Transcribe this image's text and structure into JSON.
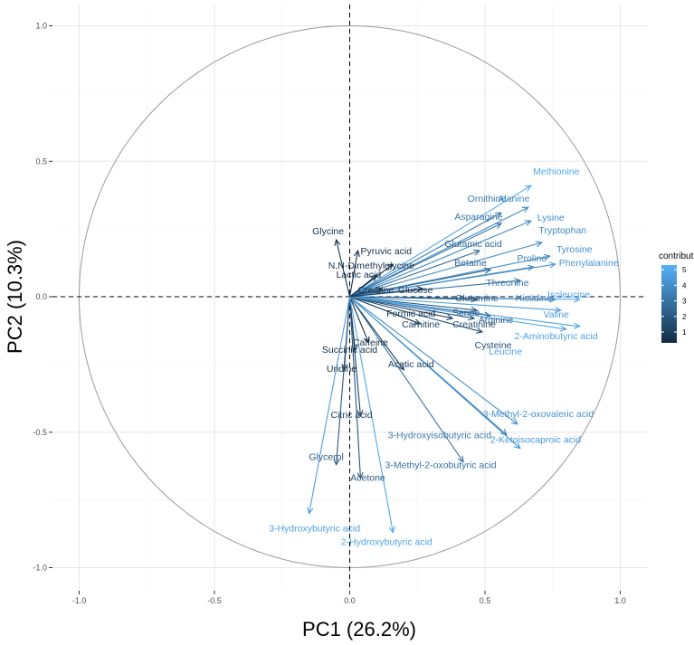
{
  "chart_data": {
    "type": "pca-variable-correlation-circle",
    "xlabel": "PC1 (26.2%)",
    "ylabel": "PC2 (10.3%)",
    "xlim": [
      -1.1,
      1.1
    ],
    "ylim": [
      -1.08,
      1.08
    ],
    "x_ticks": [
      -1.0,
      -0.5,
      0.0,
      0.5,
      1.0
    ],
    "x_tick_labels": [
      "-1.0",
      "-0.5",
      "0.0",
      "0.5",
      "1.0"
    ],
    "y_ticks": [
      -1.0,
      -0.5,
      0.0,
      0.5,
      1.0
    ],
    "y_tick_labels": [
      "-1.0",
      "-0.5",
      "0.0",
      "0.5",
      "1.0"
    ],
    "grid": true,
    "unit_circle": true,
    "legend": {
      "title": "contribution",
      "position": "right",
      "ticks": [
        1,
        2,
        3,
        4,
        5
      ],
      "tick_labels": [
        "1",
        "2",
        "3",
        "4",
        "5"
      ],
      "min": 0.3,
      "max": 5.3,
      "color_low": "#132b43",
      "color_high": "#56b1f7"
    },
    "variables": [
      {
        "name": "Methionine",
        "x": 0.67,
        "y": 0.41,
        "contrib": 5.0
      },
      {
        "name": "Alanine",
        "x": 0.66,
        "y": 0.33,
        "contrib": 3.8
      },
      {
        "name": "Ornithine",
        "x": 0.56,
        "y": 0.31,
        "contrib": 3.2
      },
      {
        "name": "Lysine",
        "x": 0.67,
        "y": 0.28,
        "contrib": 3.9
      },
      {
        "name": "Asparagine",
        "x": 0.56,
        "y": 0.27,
        "contrib": 3.1
      },
      {
        "name": "Tryptophan",
        "x": 0.71,
        "y": 0.2,
        "contrib": 3.9
      },
      {
        "name": "Glutamic acid",
        "x": 0.48,
        "y": 0.17,
        "contrib": 2.6
      },
      {
        "name": "Tyrosine",
        "x": 0.74,
        "y": 0.15,
        "contrib": 4.0
      },
      {
        "name": "Proline",
        "x": 0.68,
        "y": 0.11,
        "contrib": 3.5
      },
      {
        "name": "Betaine",
        "x": 0.52,
        "y": 0.1,
        "contrib": 2.5
      },
      {
        "name": "Phenylalanine",
        "x": 0.76,
        "y": 0.12,
        "contrib": 4.3
      },
      {
        "name": "Threonine",
        "x": 0.63,
        "y": 0.06,
        "contrib": 3.0
      },
      {
        "name": "Isoleucine",
        "x": 0.85,
        "y": -0.01,
        "contrib": 5.0
      },
      {
        "name": "Histidine",
        "x": 0.76,
        "y": -0.01,
        "contrib": 3.6
      },
      {
        "name": "Glutamine",
        "x": 0.47,
        "y": -0.01,
        "contrib": 1.9
      },
      {
        "name": "Serine",
        "x": 0.47,
        "y": -0.05,
        "contrib": 2.0
      },
      {
        "name": "Arginine",
        "x": 0.52,
        "y": -0.07,
        "contrib": 2.2
      },
      {
        "name": "Valine",
        "x": 0.78,
        "y": -0.05,
        "contrib": 4.6
      },
      {
        "name": "2-Aminobutyric acid",
        "x": 0.85,
        "y": -0.11,
        "contrib": 4.7
      },
      {
        "name": "Creatinine",
        "x": 0.46,
        "y": -0.08,
        "contrib": 1.8
      },
      {
        "name": "Carnitine",
        "x": 0.38,
        "y": -0.08,
        "contrib": 1.2
      },
      {
        "name": "Cysteine",
        "x": 0.49,
        "y": -0.13,
        "contrib": 1.6
      },
      {
        "name": "Formic acid",
        "x": 0.26,
        "y": -0.1,
        "contrib": 0.7
      },
      {
        "name": "Leucine",
        "x": 0.8,
        "y": -0.12,
        "contrib": 4.9
      },
      {
        "name": "Glycine",
        "x": -0.05,
        "y": 0.21,
        "contrib": 0.6
      },
      {
        "name": "Pyruvic acid",
        "x": 0.03,
        "y": 0.17,
        "contrib": 0.5
      },
      {
        "name": "N,N-Dimethylglycine",
        "x": 0.16,
        "y": 0.12,
        "contrib": 0.5
      },
      {
        "name": "Lactic acid",
        "x": 0.1,
        "y": 0.08,
        "contrib": 0.5
      },
      {
        "name": "Creatine",
        "x": 0.12,
        "y": 0.03,
        "contrib": 0.4
      },
      {
        "name": "Glucose",
        "x": 0.27,
        "y": 0.03,
        "contrib": 0.8
      },
      {
        "name": "Caffeine",
        "x": 0.07,
        "y": -0.17,
        "contrib": 0.5
      },
      {
        "name": "Succinic acid",
        "x": 0.02,
        "y": -0.2,
        "contrib": 0.4
      },
      {
        "name": "Uridine",
        "x": -0.02,
        "y": -0.27,
        "contrib": 0.5
      },
      {
        "name": "Acetic acid",
        "x": 0.2,
        "y": -0.27,
        "contrib": 1.0
      },
      {
        "name": "Citric acid",
        "x": 0.04,
        "y": -0.44,
        "contrib": 1.2
      },
      {
        "name": "3-Methyl-2-oxovaleric acid",
        "x": 0.62,
        "y": -0.47,
        "contrib": 4.1
      },
      {
        "name": "3-Hydroxyisobutyric acid",
        "x": 0.58,
        "y": -0.51,
        "contrib": 3.3
      },
      {
        "name": "2-Ketoisocaproic acid",
        "x": 0.63,
        "y": -0.56,
        "contrib": 4.4
      },
      {
        "name": "3-Methyl-2-oxobutyric acid",
        "x": 0.42,
        "y": -0.61,
        "contrib": 2.9
      },
      {
        "name": "Glycerol",
        "x": -0.05,
        "y": -0.62,
        "contrib": 2.1
      },
      {
        "name": "Acetone",
        "x": 0.04,
        "y": -0.67,
        "contrib": 1.9
      },
      {
        "name": "3-Hydroxybutyric acid",
        "x": -0.15,
        "y": -0.8,
        "contrib": 4.6
      },
      {
        "name": "2-Hydroxybutyric acid",
        "x": 0.16,
        "y": -0.87,
        "contrib": 4.9
      }
    ]
  }
}
